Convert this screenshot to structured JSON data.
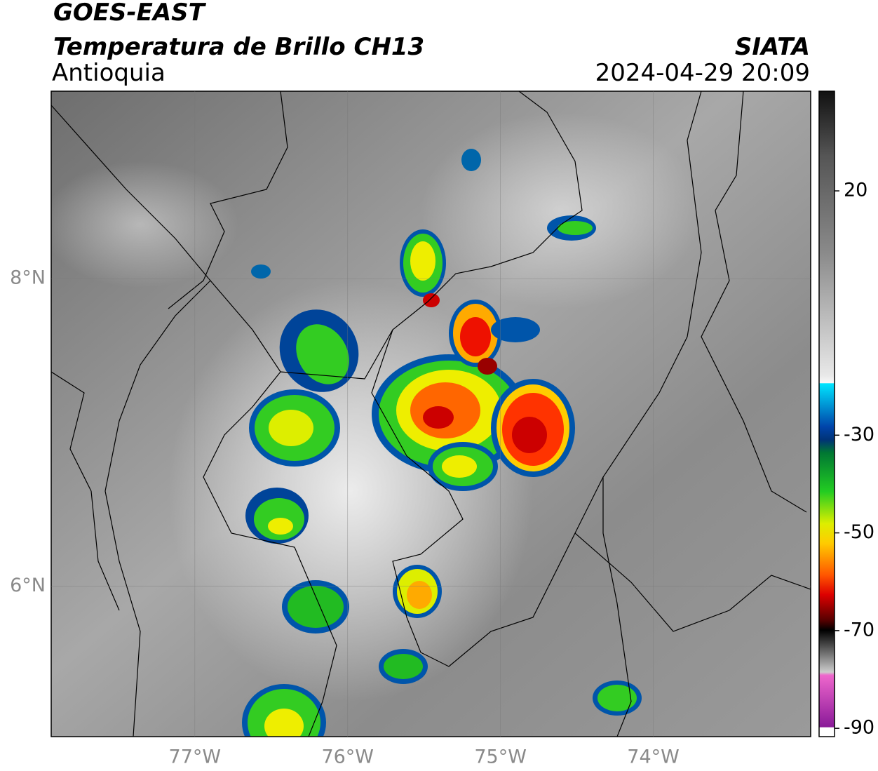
{
  "header": {
    "title": "GOES-EAST",
    "subtitle": "Temperatura de Brillo CH13",
    "region": "Antioquia",
    "source": "SIATA",
    "datetime": "2024-04-29 20:09"
  },
  "map": {
    "xlim": [
      -77.94,
      -72.97
    ],
    "ylim": [
      5.02,
      9.22
    ],
    "xticks": [
      {
        "value": -77,
        "label": "77°W"
      },
      {
        "value": -76,
        "label": "76°W"
      },
      {
        "value": -75,
        "label": "75°W"
      },
      {
        "value": -74,
        "label": "74°W"
      }
    ],
    "yticks": [
      {
        "value": 6,
        "label": "6°N"
      },
      {
        "value": 8,
        "label": "8°N"
      }
    ],
    "grid": true
  },
  "colorbar": {
    "lim": [
      -91.7,
      40.4
    ],
    "ticks": [
      20,
      -30,
      -50,
      -70,
      -90
    ]
  }
}
